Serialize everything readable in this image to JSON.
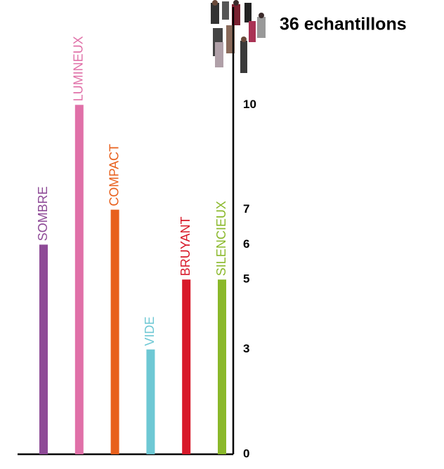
{
  "chart_data": {
    "type": "bar",
    "title": "36 echantillons",
    "categories": [
      "SOMBRE",
      "LUMINEUX",
      "COMPACT",
      "VIDE",
      "BRUYANT",
      "SILENCIEUX"
    ],
    "values": [
      6,
      10,
      7,
      3,
      5,
      5
    ],
    "colors": [
      "#8e4a97",
      "#e070a8",
      "#e8601c",
      "#6ec8d4",
      "#d8192a",
      "#8ab82a"
    ],
    "ylim": [
      0,
      12.8
    ],
    "yticks": [
      0,
      3,
      5,
      6,
      7,
      10
    ],
    "grid": false
  }
}
